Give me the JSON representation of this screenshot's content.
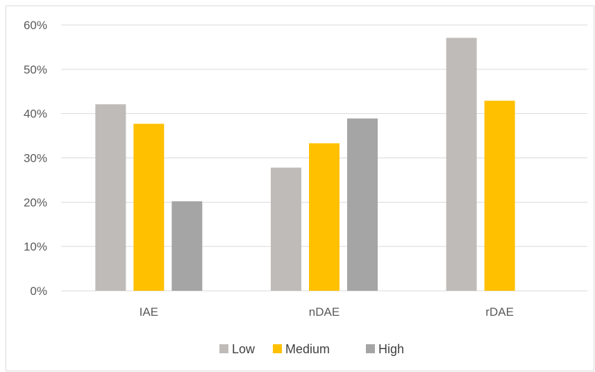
{
  "chart_data": {
    "type": "bar",
    "categories": [
      "IAE",
      "nDAE",
      "rDAE"
    ],
    "series": [
      {
        "name": "Low",
        "values": [
          42.1,
          27.8,
          57.1
        ]
      },
      {
        "name": "Medium",
        "values": [
          37.7,
          33.3,
          42.9
        ]
      },
      {
        "name": "High",
        "values": [
          20.2,
          38.9,
          0
        ]
      }
    ],
    "y_ticks": [
      "0%",
      "10%",
      "20%",
      "30%",
      "40%",
      "50%",
      "60%"
    ],
    "ylim": [
      0,
      60
    ],
    "y_unit": "%",
    "grid": true,
    "legend_position": "bottom",
    "colors": [
      "#bfbbb8",
      "#ffc000",
      "#a5a5a5"
    ],
    "gridline_color": "#d9d9d9"
  }
}
